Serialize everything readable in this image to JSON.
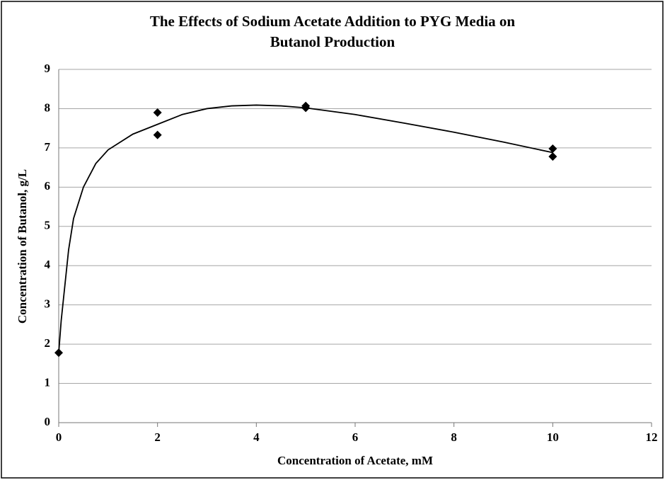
{
  "chart_data": {
    "type": "scatter",
    "title": [
      "The Effects of Sodium Acetate Addition to PYG Media on",
      "Butanol Production"
    ],
    "x_label": "Concentration of Acetate, mM",
    "y_label": "Concentration of Butanol, g/L",
    "series": [
      {
        "type": "scatter",
        "color": "#000000",
        "x": [
          0,
          2,
          2,
          5,
          5,
          10,
          10
        ],
        "values": [
          1.78,
          7.9,
          7.33,
          8.07,
          8.02,
          6.98,
          6.78
        ]
      },
      {
        "type": "line",
        "color": "#000000",
        "x": [
          0,
          0.05,
          0.1,
          0.2,
          0.3,
          0.5,
          0.75,
          1,
          1.5,
          2,
          2.5,
          3,
          3.5,
          4,
          4.5,
          5,
          6,
          7,
          8,
          9,
          10
        ],
        "values": [
          1.78,
          2.6,
          3.2,
          4.4,
          5.2,
          6.0,
          6.6,
          6.95,
          7.35,
          7.6,
          7.85,
          8.0,
          8.07,
          8.09,
          8.07,
          8.02,
          7.85,
          7.63,
          7.4,
          7.15,
          6.88
        ]
      }
    ],
    "xlim": [
      0,
      12
    ],
    "xticks": [
      0,
      2,
      4,
      6,
      8,
      10,
      12
    ],
    "ylim": [
      0,
      9
    ],
    "yticks": [
      0,
      1,
      2,
      3,
      4,
      5,
      6,
      7,
      8,
      9
    ],
    "grid": true
  }
}
